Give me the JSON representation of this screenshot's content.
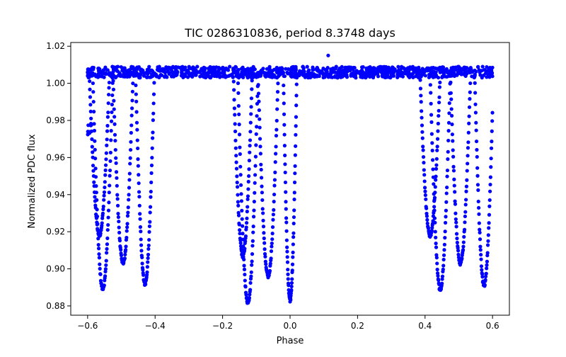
{
  "chart_data": {
    "type": "scatter",
    "title": "TIC 0286310836, period 8.3748 days",
    "xlabel": "Phase",
    "ylabel": "Normalized PDC flux",
    "xlim": [
      -0.6,
      0.6
    ],
    "ylim": [
      0.88,
      1.02
    ],
    "x_ticks": [
      -0.6,
      -0.4,
      -0.2,
      0.0,
      0.2,
      0.4,
      0.6
    ],
    "x_tick_labels": [
      "−0.6",
      "−0.4",
      "−0.2",
      "0.0",
      "0.2",
      "0.4",
      "0.6"
    ],
    "y_ticks": [
      0.88,
      0.9,
      0.92,
      0.94,
      0.96,
      0.98,
      1.0,
      1.02
    ],
    "y_tick_labels": [
      "0.88",
      "0.90",
      "0.92",
      "0.94",
      "0.96",
      "0.98",
      "1.00",
      "1.02"
    ],
    "grid": false,
    "legend": "none",
    "marker_color": "#0000ff",
    "baseline": {
      "x_range": [
        -0.6,
        0.6
      ],
      "y_range": [
        1.003,
        1.009
      ]
    },
    "outliers": [
      {
        "x": 0.113,
        "y": 1.015
      }
    ],
    "dips": [
      {
        "center": -0.555,
        "half_width": 0.03,
        "min_flux": 0.889
      },
      {
        "center": -0.565,
        "half_width": 0.03,
        "min_flux": 0.918
      },
      {
        "center": -0.495,
        "half_width": 0.03,
        "min_flux": 0.903
      },
      {
        "center": -0.43,
        "half_width": 0.028,
        "min_flux": 0.892
      },
      {
        "center": -0.14,
        "half_width": 0.028,
        "min_flux": 0.907
      },
      {
        "center": -0.125,
        "half_width": 0.03,
        "min_flux": 0.882
      },
      {
        "center": -0.065,
        "half_width": 0.03,
        "min_flux": 0.896
      },
      {
        "center": 0.0,
        "half_width": 0.02,
        "min_flux": 0.883
      },
      {
        "center": 0.415,
        "half_width": 0.03,
        "min_flux": 0.918
      },
      {
        "center": 0.445,
        "half_width": 0.03,
        "min_flux": 0.889
      },
      {
        "center": 0.505,
        "half_width": 0.03,
        "min_flux": 0.903
      },
      {
        "center": 0.575,
        "half_width": 0.028,
        "min_flux": 0.891
      }
    ],
    "partial_ingress": [
      {
        "x_range": [
          -0.6,
          -0.59
        ],
        "y_range": [
          0.972,
          0.98
        ]
      }
    ]
  }
}
